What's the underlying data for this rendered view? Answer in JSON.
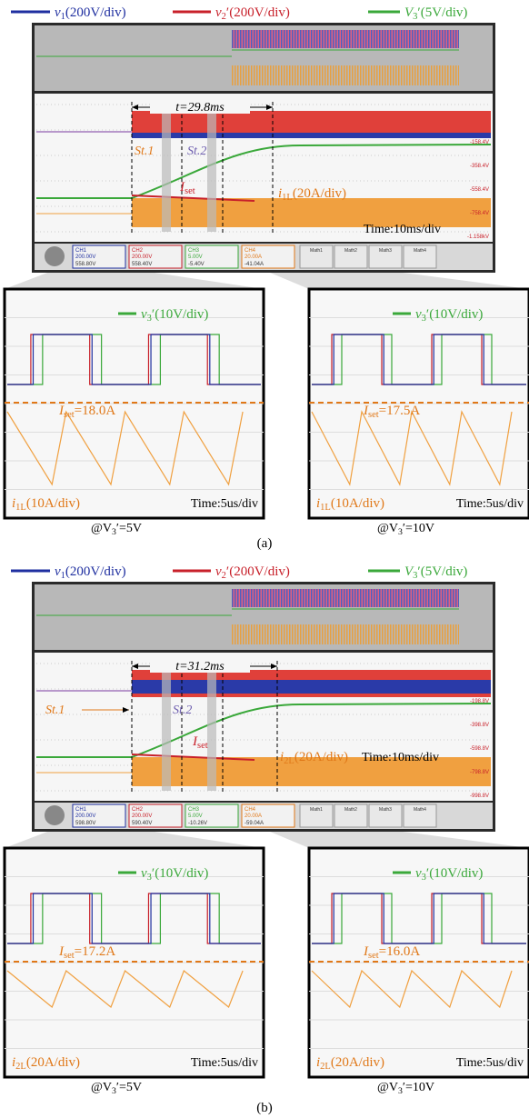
{
  "panels": [
    {
      "label": "(a)",
      "legend": [
        {
          "main": "v",
          "sub": "1",
          "tail": "(200V/div)"
        },
        {
          "main": "v",
          "sub": "2",
          "tail": "′(200V/div)"
        },
        {
          "main": "V",
          "sub": "3",
          "tail": "′(5V/div)"
        }
      ],
      "scope": {
        "interval": "t=29.8ms",
        "stages": [
          "St.1",
          "St.2"
        ],
        "iset": {
          "main": "I",
          "sub": "set"
        },
        "current": {
          "main": "i",
          "sub": "1L",
          "tail": "(20A/div)"
        },
        "time": "Time:10ms/div",
        "levels": [
          "-158.4V",
          "-358.4V",
          "-558.4V",
          "-758.4V",
          "-1.158kV"
        ],
        "channels": [
          {
            "name": "CH1",
            "scale": "200.00V",
            "offset": "558.80V"
          },
          {
            "name": "CH2",
            "scale": "200.00V",
            "offset": "558.40V"
          },
          {
            "name": "CH3",
            "scale": "5.00V",
            "offset": "-5.40V"
          },
          {
            "name": "CH4",
            "scale": "20.00A",
            "offset": "-41.04A"
          }
        ],
        "maths": [
          "Math1",
          "Math2",
          "Math3",
          "Math4"
        ]
      },
      "zooms": [
        {
          "voltage": {
            "main": "v",
            "sub": "3",
            "tail": "′(10V/div)"
          },
          "iset": {
            "main": "I",
            "sub": "set",
            "tail": "=18.0A"
          },
          "current": {
            "main": "i",
            "sub": "1L",
            "tail": "(10A/div)"
          },
          "time": "Time:5us/div",
          "caption": {
            "main": "@V",
            "sub": "3",
            "tail": "′=5V"
          }
        },
        {
          "voltage": {
            "main": "v",
            "sub": "3",
            "tail": "′(10V/div)"
          },
          "iset": {
            "main": "I",
            "sub": "set",
            "tail": "=17.5A"
          },
          "current": {
            "main": "i",
            "sub": "1L",
            "tail": "(10A/div)"
          },
          "time": "Time:5us/div",
          "caption": {
            "main": "@V",
            "sub": "3",
            "tail": "′=10V"
          }
        }
      ]
    },
    {
      "label": "(b)",
      "legend": [
        {
          "main": "v",
          "sub": "1",
          "tail": "(200V/div)"
        },
        {
          "main": "v",
          "sub": "2",
          "tail": "′(200V/div)"
        },
        {
          "main": "V",
          "sub": "3",
          "tail": "′(5V/div)"
        }
      ],
      "scope": {
        "interval": "t=31.2ms",
        "stages": [
          "St.1",
          "St.2"
        ],
        "iset": {
          "main": "I",
          "sub": "set"
        },
        "current": {
          "main": "i",
          "sub": "2L",
          "tail": "(20A/div)"
        },
        "time": "Time:10ms/div",
        "levels": [
          "-198.8V",
          "-398.8V",
          "-598.8V",
          "-798.8V",
          "-998.8V"
        ],
        "channels": [
          {
            "name": "CH1",
            "scale": "200.00V",
            "offset": "598.80V"
          },
          {
            "name": "CH2",
            "scale": "200.00V",
            "offset": "590.40V"
          },
          {
            "name": "CH3",
            "scale": "5.00V",
            "offset": "-10.26V"
          },
          {
            "name": "CH4",
            "scale": "20.00A",
            "offset": "-59.04A"
          }
        ],
        "maths": [
          "Math1",
          "Math2",
          "Math3",
          "Math4"
        ]
      },
      "zooms": [
        {
          "voltage": {
            "main": "v",
            "sub": "3",
            "tail": "′(10V/div)"
          },
          "iset": {
            "main": "I",
            "sub": "set",
            "tail": "=17.2A"
          },
          "current": {
            "main": "i",
            "sub": "2L",
            "tail": "(20A/div)"
          },
          "time": "Time:5us/div",
          "caption": {
            "main": "@V",
            "sub": "3",
            "tail": "′=5V"
          }
        },
        {
          "voltage": {
            "main": "v",
            "sub": "3",
            "tail": "′(10V/div)"
          },
          "iset": {
            "main": "I",
            "sub": "set",
            "tail": "=16.0A"
          },
          "current": {
            "main": "i",
            "sub": "2L",
            "tail": "(20A/div)"
          },
          "time": "Time:5us/div",
          "caption": {
            "main": "@V",
            "sub": "3",
            "tail": "′=10V"
          }
        }
      ]
    }
  ]
}
